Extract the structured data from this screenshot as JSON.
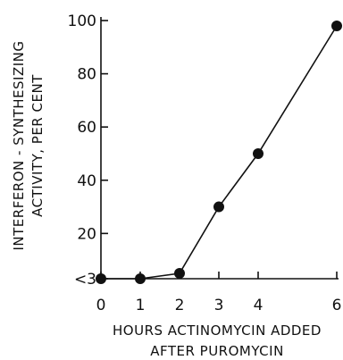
{
  "chart_data": {
    "type": "line",
    "xlabel": [
      "HOURS ACTINOMYCIN ADDED",
      "AFTER PUROMYCIN"
    ],
    "ylabel": [
      "INTERFERON - SYNTHESIZING",
      "ACTIVITY, PER CENT"
    ],
    "x_ticks": [
      0,
      1,
      2,
      3,
      4,
      6
    ],
    "y_ticks": [
      {
        "value": 3,
        "label": "<3"
      },
      {
        "value": 20,
        "label": "20"
      },
      {
        "value": 40,
        "label": "40"
      },
      {
        "value": 60,
        "label": "60"
      },
      {
        "value": 80,
        "label": "80"
      },
      {
        "value": 100,
        "label": "100"
      }
    ],
    "xlim": [
      0,
      6
    ],
    "ylim": [
      3,
      100
    ],
    "grid": false,
    "series": [
      {
        "x": [
          0,
          1,
          2,
          3,
          4,
          6
        ],
        "y": [
          3,
          3,
          5,
          30,
          50,
          98
        ]
      }
    ],
    "colors": {
      "ink": "#111111",
      "background": "#ffffff"
    }
  }
}
